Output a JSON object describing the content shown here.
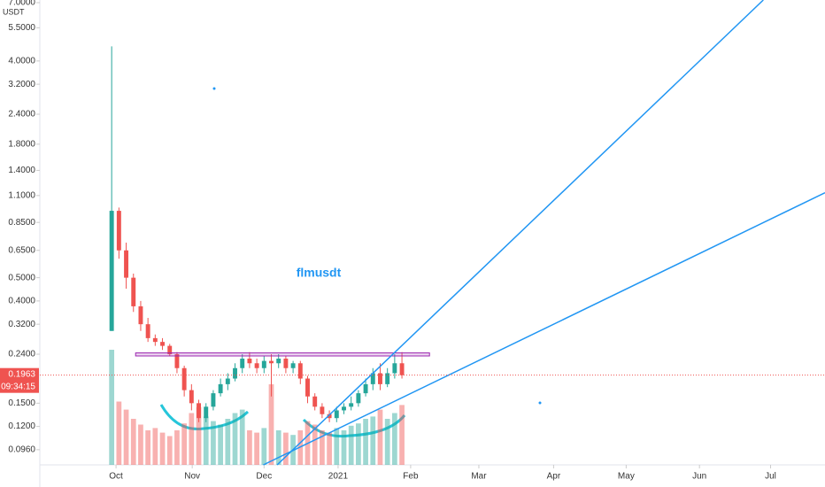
{
  "chart_data": {
    "type": "candlestick",
    "quote": "USDT",
    "annotation": "flmusdt",
    "last_price": 0.1963,
    "countdown": "09:34:15",
    "log_scale": true,
    "up_color": "#26a69a",
    "down_color": "#ef5350",
    "drawing_color": "#2196f3",
    "open": [
      0.3,
      0.95,
      0.65,
      0.5,
      0.38,
      0.32,
      0.28,
      0.27,
      0.26,
      0.24,
      0.21,
      0.17,
      0.15,
      0.13,
      0.145,
      0.165,
      0.18,
      0.19,
      0.21,
      0.23,
      0.22,
      0.21,
      0.225,
      0.22,
      0.23,
      0.21,
      0.22,
      0.19,
      0.16,
      0.145,
      0.135,
      0.13,
      0.14,
      0.145,
      0.15,
      0.165,
      0.18,
      0.2,
      0.18,
      0.2,
      0.22
    ],
    "high": [
      4.6,
      0.98,
      0.7,
      0.52,
      0.4,
      0.34,
      0.29,
      0.28,
      0.265,
      0.245,
      0.215,
      0.18,
      0.155,
      0.15,
      0.17,
      0.19,
      0.2,
      0.22,
      0.24,
      0.245,
      0.23,
      0.235,
      0.24,
      0.24,
      0.235,
      0.225,
      0.225,
      0.195,
      0.165,
      0.15,
      0.14,
      0.145,
      0.15,
      0.16,
      0.17,
      0.19,
      0.21,
      0.22,
      0.21,
      0.24,
      0.245
    ],
    "low": [
      0.3,
      0.6,
      0.45,
      0.36,
      0.3,
      0.27,
      0.26,
      0.25,
      0.235,
      0.2,
      0.16,
      0.14,
      0.125,
      0.125,
      0.14,
      0.16,
      0.17,
      0.185,
      0.2,
      0.21,
      0.2,
      0.2,
      0.16,
      0.21,
      0.2,
      0.2,
      0.18,
      0.15,
      0.14,
      0.13,
      0.125,
      0.125,
      0.135,
      0.14,
      0.145,
      0.16,
      0.17,
      0.17,
      0.175,
      0.19,
      0.19
    ],
    "close": [
      0.95,
      0.65,
      0.5,
      0.38,
      0.32,
      0.28,
      0.27,
      0.26,
      0.24,
      0.21,
      0.17,
      0.15,
      0.13,
      0.145,
      0.165,
      0.18,
      0.19,
      0.21,
      0.23,
      0.22,
      0.21,
      0.225,
      0.22,
      0.23,
      0.21,
      0.22,
      0.19,
      0.16,
      0.145,
      0.135,
      0.13,
      0.14,
      0.145,
      0.15,
      0.165,
      0.18,
      0.2,
      0.18,
      0.2,
      0.22,
      0.1963
    ],
    "volume": [
      100,
      55,
      48,
      40,
      35,
      30,
      32,
      28,
      25,
      30,
      36,
      45,
      50,
      42,
      38,
      35,
      40,
      45,
      48,
      30,
      28,
      32,
      70,
      30,
      28,
      26,
      30,
      38,
      35,
      30,
      28,
      32,
      30,
      34,
      36,
      40,
      42,
      48,
      40,
      45,
      52
    ],
    "volume_lim": [
      0,
      100
    ],
    "xlim": [
      -9.9,
      98.3
    ],
    "ylim": [
      0.083,
      7.18
    ],
    "xticks": [
      {
        "value": 0.6,
        "label": "Oct"
      },
      {
        "value": 11.1,
        "label": "Nov"
      },
      {
        "value": 21,
        "label": "Dec"
      },
      {
        "value": 31.2,
        "label": "2021"
      },
      {
        "value": 41.2,
        "label": "Feb"
      },
      {
        "value": 50.6,
        "label": "Mar"
      },
      {
        "value": 60.9,
        "label": "Apr"
      },
      {
        "value": 70.9,
        "label": "May"
      },
      {
        "value": 81,
        "label": "Jun"
      },
      {
        "value": 90.8,
        "label": "Jul"
      }
    ],
    "yticks": [
      {
        "value": 0.096,
        "label": "0.0960"
      },
      {
        "value": 0.12,
        "label": "0.1200"
      },
      {
        "value": 0.15,
        "label": "0.1500"
      },
      {
        "value": 0.24,
        "label": "0.2400"
      },
      {
        "value": 0.32,
        "label": "0.3200"
      },
      {
        "value": 0.4,
        "label": "0.4000"
      },
      {
        "value": 0.5,
        "label": "0.5000"
      },
      {
        "value": 0.65,
        "label": "0.6500"
      },
      {
        "value": 0.85,
        "label": "0.8500"
      },
      {
        "value": 1.1,
        "label": "1.1000"
      },
      {
        "value": 1.4,
        "label": "1.4000"
      },
      {
        "value": 1.8,
        "label": "1.8000"
      },
      {
        "value": 2.4,
        "label": "2.4000"
      },
      {
        "value": 3.2,
        "label": "3.2000"
      },
      {
        "value": 4.0,
        "label": "4.0000"
      },
      {
        "value": 5.5,
        "label": "5.5000"
      },
      {
        "value": 7.0,
        "label": "7.0000"
      }
    ],
    "trendlines": [
      {
        "x": [
          22.8,
          89.8
        ],
        "y": [
          0.083,
          7.18
        ]
      },
      {
        "x": [
          20.9,
          98.3
        ],
        "y": [
          0.083,
          1.13
        ]
      }
    ],
    "rectangle": {
      "x": [
        3.3,
        43.8
      ],
      "y": [
        0.236,
        0.243
      ]
    }
  }
}
